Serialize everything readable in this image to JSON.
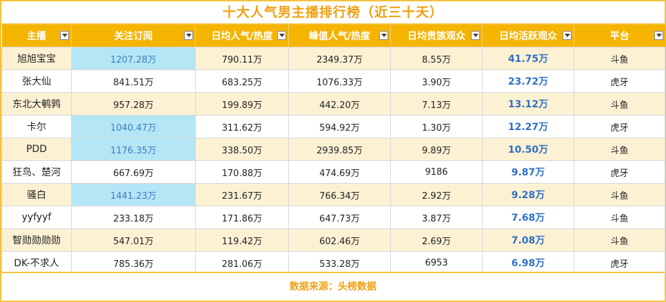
{
  "title": "十大人气男主播排行榜（近三十天）",
  "columns": [
    "主播",
    "关注订阅",
    "日均人气/热度",
    "峰值人气/热度",
    "日均贵族观众",
    "日均活跃观众",
    "平台"
  ],
  "rows": [
    [
      "旭旭宝宝",
      "1207.28万",
      "790.11万",
      "2349.37万",
      "8.55万",
      "41.75万",
      "斗鱼"
    ],
    [
      "张大仙",
      "841.51万",
      "683.25万",
      "1076.33万",
      "3.90万",
      "23.72万",
      "虎牙"
    ],
    [
      "东北大鹌鹑",
      "957.28万",
      "199.89万",
      "442.20万",
      "7.13万",
      "13.12万",
      "斗鱼"
    ],
    [
      "卡尔",
      "1040.47万",
      "311.62万",
      "594.92万",
      "1.30万",
      "12.27万",
      "虎牙"
    ],
    [
      "PDD",
      "1176.35万",
      "338.50万",
      "2939.85万",
      "9.89万",
      "10.50万",
      "斗鱼"
    ],
    [
      "狂鸟、楚河",
      "667.69万",
      "170.88万",
      "474.69万",
      "9186",
      "9.87万",
      "虎牙"
    ],
    [
      "骚白",
      "1441.23万",
      "231.67万",
      "766.34万",
      "2.92万",
      "9.28万",
      "斗鱼"
    ],
    [
      "yyfyyf",
      "233.18万",
      "171.86万",
      "647.73万",
      "3.87万",
      "7.68万",
      "斗鱼"
    ],
    [
      "智勋勋勋勋",
      "547.01万",
      "119.42万",
      "602.46万",
      "2.69万",
      "7.08万",
      "斗鱼"
    ],
    [
      "DK-不求人",
      "785.36万",
      "281.06万",
      "533.28万",
      "6953",
      "6.98万",
      "虎牙"
    ]
  ],
  "highlighted_subscription_rows": [
    0,
    3,
    4,
    6
  ],
  "footer": "数据来源：头榜数据",
  "colors": {
    "header_bg": "#f5b400",
    "title_text": "#f0a010",
    "striped_row": "#fdf1d4",
    "highlight_cell": "#b5e6f6",
    "active_value": "#2f6fc7"
  }
}
